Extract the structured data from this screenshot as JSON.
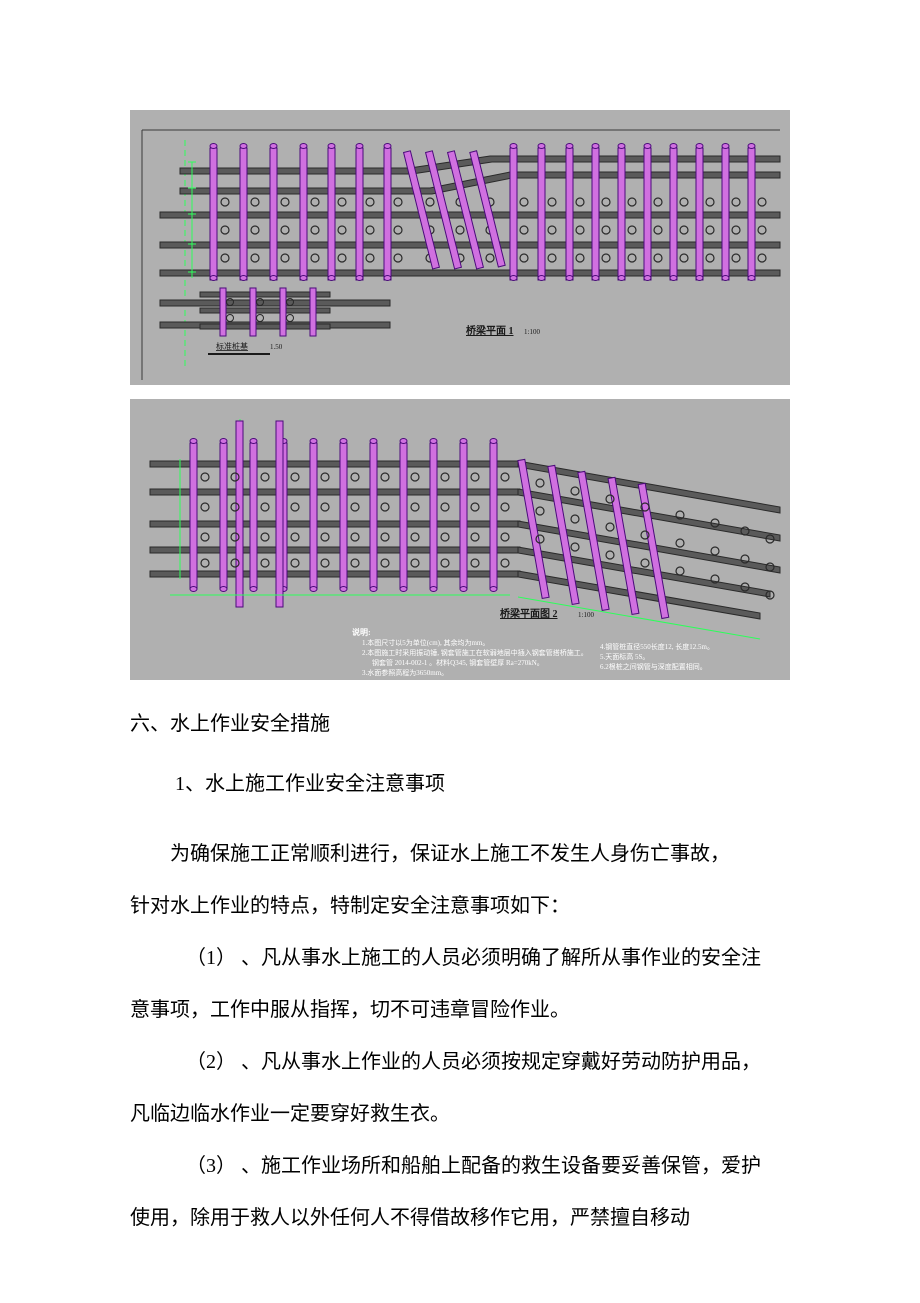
{
  "diagrams": {
    "bg": "#b0b0b0",
    "frame_color": "#3a3a3a",
    "pile_fill": "#d070e0",
    "pile_stroke": "#4a0a7a",
    "beam_color": "#5a5a5a",
    "beam_stroke": "#2a2a2a",
    "circle_stroke": "#2a2a2a",
    "dim_color": "#2dff5a",
    "guide_color": "#2dff5a",
    "text_color": "#1a1a1a",
    "white": "#ffffff",
    "d1": {
      "title": "桥梁平面 1",
      "scale": "1:100",
      "sub_label": "标准桩基",
      "sub_dim": "1.50"
    },
    "d2": {
      "title": "桥梁平面图 2",
      "scale": "1:100",
      "note_head": "说明:",
      "note1": "1.本图尺寸以5为单位(cm), 其余均为mm。",
      "note2": "2.本图施工时采用振动锤, 钢套管施工在软弱地层中插入钢套管搭桥施工。",
      "note3": "钢套管 2014-002-1 。材料Q345, 钢套管壁厚 Ra=270kN。",
      "note4": "3.水面参照高程为3650mm。",
      "note5": "4.钢管桩直径550长度12, 长度12.5m。",
      "note6": "5.天面标高 5S。",
      "note7": "6.2根桩之间钢管与深度配置相同。"
    }
  },
  "text": {
    "section_heading": "六、水上作业安全措施",
    "sub_heading": "1、水上施工作业安全注意事项",
    "intro_p1": "为确保施工正常顺利进行，保证水上施工不发生人身伤亡事故，",
    "intro_p2": "针对水上作业的特点，特制定安全注意事项如下：",
    "item1_num": "（1）",
    "item1_body": "、凡从事水上施工的人员必须明确了解所从事作业的安全注",
    "item1_cont": "意事项，工作中服从指挥，切不可违章冒险作业。",
    "item2_num": "（2）",
    "item2_body": "、凡从事水上作业的人员必须按规定穿戴好劳动防护用品，",
    "item2_cont": "凡临边临水作业一定要穿好救生衣。",
    "item3_num": "（3）",
    "item3_body": "、施工作业场所和船舶上配备的救生设备要妥善保管，爱护",
    "item3_cont": "使用，除用于救人以外任何人不得借故移作它用，严禁擅自移动"
  }
}
